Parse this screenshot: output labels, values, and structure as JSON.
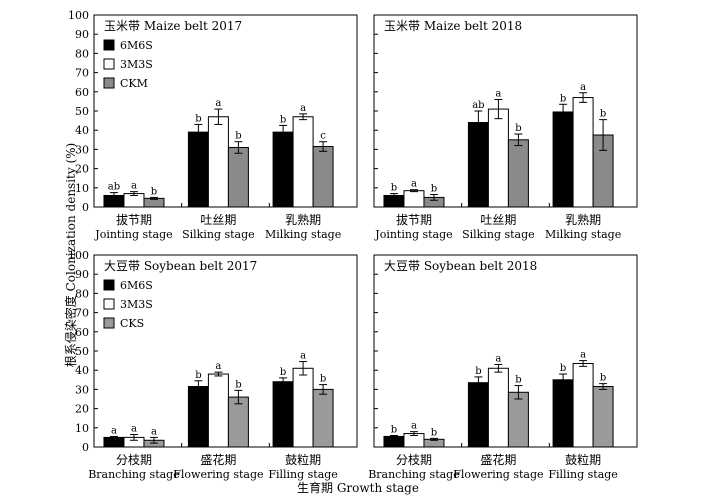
{
  "figure": {
    "ylabel": "根系侵染密度 Colonization density (%)",
    "xlabel": "生育期 Growth stage"
  },
  "colors": {
    "black": "#000000",
    "white": "#ffffff",
    "gray_maize": "#8a8a8a",
    "gray_soy": "#9a9a9a"
  },
  "chart_data": [
    {
      "type": "bar",
      "title": "玉米带 Maize belt  2017",
      "categories": [
        "拔节期",
        "吐丝期",
        "乳熟期"
      ],
      "categories_en": [
        "Jointing stage",
        "Silking stage",
        "Milking stage"
      ],
      "ylim": [
        0,
        100
      ],
      "yticks": [
        0,
        10,
        20,
        30,
        40,
        50,
        60,
        70,
        80,
        90,
        100
      ],
      "legend_position": "top-left",
      "series": [
        {
          "name": "6M6S",
          "fill": "#000000",
          "values": [
            6,
            39,
            39
          ],
          "errors": [
            1.5,
            4,
            3.5
          ],
          "letters": [
            "ab",
            "b",
            "b"
          ]
        },
        {
          "name": "3M3S",
          "fill": "#ffffff",
          "values": [
            7,
            47,
            47
          ],
          "errors": [
            1,
            4,
            1.5
          ],
          "letters": [
            "a",
            "a",
            "a"
          ]
        },
        {
          "name": "CKM",
          "fill": "#8a8a8a",
          "values": [
            4.5,
            31,
            31.5
          ],
          "errors": [
            0.5,
            3,
            2.5
          ],
          "letters": [
            "b",
            "b",
            "c"
          ]
        }
      ]
    },
    {
      "type": "bar",
      "title": "玉米带 Maize belt   2018",
      "categories": [
        "拔节期",
        "吐丝期",
        "乳熟期"
      ],
      "categories_en": [
        "Jointing stage",
        "Silking stage",
        "Milking stage"
      ],
      "ylim": [
        0,
        100
      ],
      "series": [
        {
          "fill": "#000000",
          "values": [
            6,
            44,
            49.5
          ],
          "errors": [
            1,
            6,
            4
          ],
          "letters": [
            "b",
            "ab",
            "b"
          ]
        },
        {
          "fill": "#ffffff",
          "values": [
            8.5,
            51,
            57
          ],
          "errors": [
            0.5,
            5,
            2.5
          ],
          "letters": [
            "a",
            "a",
            "a"
          ]
        },
        {
          "fill": "#8a8a8a",
          "values": [
            5,
            35,
            37.5
          ],
          "errors": [
            1.5,
            3,
            8
          ],
          "letters": [
            "b",
            "b",
            "b"
          ]
        }
      ]
    },
    {
      "type": "bar",
      "title": "大豆带 Soybean belt   2017",
      "categories": [
        "分枝期",
        "盛花期",
        "鼓粒期"
      ],
      "categories_en": [
        "Branching stage",
        "Flowering stage",
        "Filling stage"
      ],
      "ylim": [
        0,
        100
      ],
      "yticks": [
        0,
        10,
        20,
        30,
        40,
        50,
        60,
        70,
        80,
        90,
        100
      ],
      "legend_position": "top-left",
      "series": [
        {
          "name": "6M6S",
          "fill": "#000000",
          "values": [
            5,
            31.5,
            34
          ],
          "errors": [
            0.5,
            3,
            2
          ],
          "letters": [
            "a",
            "b",
            "b"
          ]
        },
        {
          "name": "3M3S",
          "fill": "#ffffff",
          "values": [
            5,
            38,
            41
          ],
          "errors": [
            1.5,
            1,
            3.5
          ],
          "letters": [
            "a",
            "a",
            "a"
          ]
        },
        {
          "name": "CKS",
          "fill": "#9a9a9a",
          "values": [
            3.5,
            26,
            30
          ],
          "errors": [
            1.5,
            3.5,
            2.5
          ],
          "letters": [
            "a",
            "b",
            "b"
          ]
        }
      ]
    },
    {
      "type": "bar",
      "title": "大豆带 Soybean belt     2018",
      "categories": [
        "分枝期",
        "盛花期",
        "鼓粒期"
      ],
      "categories_en": [
        "Branching stage",
        "Flowering stage",
        "Filling stage"
      ],
      "ylim": [
        0,
        100
      ],
      "series": [
        {
          "fill": "#000000",
          "values": [
            5.5,
            33.5,
            35
          ],
          "errors": [
            0.5,
            3,
            3
          ],
          "letters": [
            "b",
            "b",
            "b"
          ]
        },
        {
          "fill": "#ffffff",
          "values": [
            7,
            41,
            43.5
          ],
          "errors": [
            1,
            2,
            1.5
          ],
          "letters": [
            "a",
            "a",
            "a"
          ]
        },
        {
          "fill": "#9a9a9a",
          "values": [
            4,
            28.5,
            31.5
          ],
          "errors": [
            0.5,
            3.5,
            1.5
          ],
          "letters": [
            "b",
            "b",
            "b"
          ]
        }
      ]
    }
  ]
}
